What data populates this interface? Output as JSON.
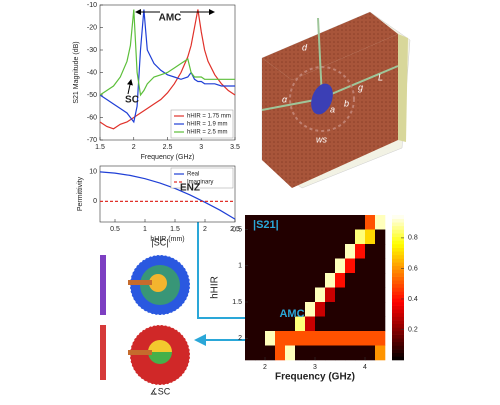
{
  "chart_data": [
    {
      "type": "line",
      "xlabel": "Frequency (GHz)",
      "ylabel": "S21 Magnitude (dB)",
      "x": [
        1.5,
        1.6,
        1.7,
        1.8,
        1.9,
        1.95,
        2.0,
        2.05,
        2.1,
        2.15,
        2.2,
        2.3,
        2.4,
        2.5,
        2.6,
        2.7,
        2.8,
        2.85,
        2.9,
        2.95,
        3.0,
        3.05,
        3.1,
        3.2,
        3.3,
        3.4,
        3.5
      ],
      "series": [
        {
          "name": "hHIR = 1.75 mm",
          "color": "#e0312a",
          "values": [
            -62,
            -64,
            -65,
            -63,
            -62,
            -61,
            -60,
            -59,
            -58,
            -57,
            -56,
            -54,
            -52,
            -49,
            -45,
            -40,
            -33,
            -28,
            -20,
            -12,
            -22,
            -30,
            -35,
            -41,
            -45,
            -48,
            -50
          ]
        },
        {
          "name": "hHIR = 1.9 mm",
          "color": "#1f3fd6",
          "values": [
            -50,
            -52,
            -54,
            -56,
            -58,
            -60,
            -62,
            -55,
            -30,
            -12,
            -30,
            -36,
            -39,
            -41,
            -42,
            -43,
            -42,
            -40,
            -43,
            -44,
            -44,
            -45,
            -45,
            -45,
            -46,
            -46,
            -46
          ]
        },
        {
          "name": "hHIR = 2.5 mm",
          "color": "#5cbf3a",
          "values": [
            -50,
            -48,
            -46,
            -42,
            -35,
            -28,
            -12,
            -40,
            -50,
            -48,
            -45,
            -42,
            -41,
            -40,
            -38,
            -36,
            -34,
            -40,
            -42,
            -42,
            -42,
            -43,
            -43,
            -43,
            -43,
            -43,
            -43
          ]
        }
      ],
      "xlim": [
        1.5,
        3.5
      ],
      "xticks": [
        1.5,
        2,
        2.5,
        3,
        3.5
      ],
      "ylim": [
        -70,
        -10
      ],
      "yticks": [
        -10,
        -20,
        -30,
        -40,
        -50,
        -60,
        -70
      ],
      "legend": "lower right",
      "annotations": [
        "AMC",
        "SC"
      ]
    },
    {
      "type": "line",
      "xlabel": "hHIR (mm)",
      "ylabel": "Permittivity",
      "x": [
        0.25,
        0.5,
        0.75,
        1,
        1.25,
        1.5,
        1.75,
        2,
        2.25,
        2.5
      ],
      "series": [
        {
          "name": "Real",
          "color": "#1f3fd6",
          "values": [
            10,
            9.6,
            8.8,
            7.7,
            6.2,
            4.4,
            2.2,
            -0.3,
            -3,
            -6
          ]
        },
        {
          "name": "Imaginary",
          "color": "#e0312a",
          "dashed": true,
          "values": [
            0,
            0,
            0,
            0,
            0,
            0,
            0,
            0,
            0,
            0
          ]
        }
      ],
      "xlim": [
        0.25,
        2.5
      ],
      "xticks": [
        0.5,
        1,
        1.5,
        2,
        2.5
      ],
      "ylim": [
        -7,
        12
      ],
      "yticks": [
        0,
        10
      ],
      "legend": "upper right",
      "annotations": [
        "ENZ"
      ]
    },
    {
      "type": "heatmap",
      "title": "|S21|",
      "xlabel": "Frequency (GHz)",
      "ylabel": "hHIR",
      "x": [
        1.7,
        1.9,
        2.1,
        2.3,
        2.5,
        2.7,
        2.9,
        3.1,
        3.3,
        3.5,
        3.7,
        3.9,
        4.1,
        4.3
      ],
      "y": [
        0.4,
        0.6,
        0.8,
        1.0,
        1.2,
        1.4,
        1.6,
        1.8,
        2.0,
        2.2
      ],
      "z": [
        [
          0.05,
          0.05,
          0.05,
          0.05,
          0.05,
          0.05,
          0.05,
          0.05,
          0.05,
          0.05,
          0.05,
          0.05,
          0.5,
          0.9
        ],
        [
          0.05,
          0.05,
          0.05,
          0.05,
          0.05,
          0.05,
          0.05,
          0.05,
          0.05,
          0.05,
          0.05,
          0.85,
          0.7,
          0.05
        ],
        [
          0.05,
          0.05,
          0.05,
          0.05,
          0.05,
          0.05,
          0.05,
          0.05,
          0.05,
          0.05,
          0.9,
          0.4,
          0.05,
          0.05
        ],
        [
          0.05,
          0.05,
          0.05,
          0.05,
          0.05,
          0.05,
          0.05,
          0.05,
          0.05,
          0.9,
          0.4,
          0.05,
          0.05,
          0.05
        ],
        [
          0.05,
          0.05,
          0.05,
          0.05,
          0.05,
          0.05,
          0.05,
          0.05,
          0.9,
          0.4,
          0.05,
          0.05,
          0.05,
          0.05
        ],
        [
          0.05,
          0.05,
          0.05,
          0.05,
          0.05,
          0.05,
          0.05,
          0.9,
          0.3,
          0.05,
          0.05,
          0.05,
          0.05,
          0.05
        ],
        [
          0.05,
          0.05,
          0.05,
          0.05,
          0.05,
          0.05,
          0.9,
          0.3,
          0.05,
          0.05,
          0.05,
          0.05,
          0.05,
          0.05
        ],
        [
          0.05,
          0.05,
          0.05,
          0.05,
          0.05,
          0.85,
          0.3,
          0.05,
          0.05,
          0.05,
          0.05,
          0.05,
          0.05,
          0.05
        ],
        [
          0.05,
          0.05,
          0.9,
          0.5,
          0.5,
          0.5,
          0.5,
          0.5,
          0.5,
          0.5,
          0.5,
          0.5,
          0.5,
          0.5
        ],
        [
          0.05,
          0.05,
          0.05,
          0.5,
          0.9,
          0.05,
          0.05,
          0.05,
          0.05,
          0.05,
          0.05,
          0.05,
          0.05,
          0.6
        ]
      ],
      "xlim": [
        1.6,
        4.4
      ],
      "xticks": [
        2,
        3,
        4
      ],
      "ylim": [
        0.3,
        2.3
      ],
      "yticks": [
        0.5,
        1,
        1.5,
        2
      ],
      "y_reversed": true,
      "clim": [
        0,
        0.95
      ],
      "cticks": [
        0.2,
        0.4,
        0.6,
        0.8
      ],
      "colormap": "hot",
      "annotations": [
        "AMC"
      ]
    }
  ],
  "diagram": {
    "labels": [
      "d",
      "α",
      "L",
      "g",
      "a",
      "b",
      "ws"
    ]
  },
  "field_plots": {
    "magnitude_label": "|SC|",
    "phase_label": "∡SC"
  }
}
